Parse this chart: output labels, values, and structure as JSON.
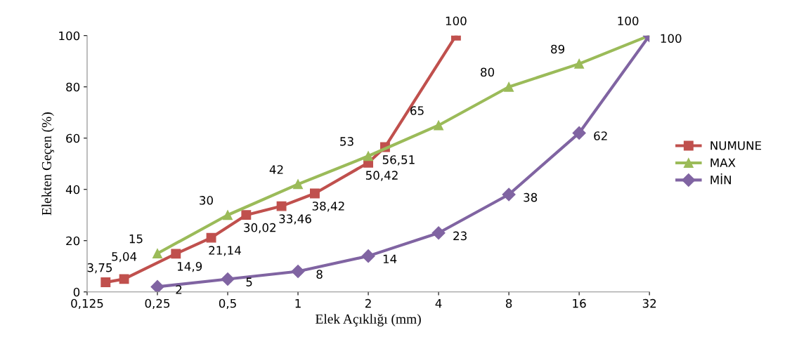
{
  "chart_data": {
    "type": "line",
    "xlabel": "Elek Açıklığı (mm)",
    "ylabel": "Elekten Geçen (%)",
    "log": "x",
    "xlim": [
      0.125,
      32
    ],
    "xticks": [
      {
        "value": 0.125,
        "label": "0,125"
      },
      {
        "value": 0.25,
        "label": "0,25"
      },
      {
        "value": 0.5,
        "label": "0,5"
      },
      1,
      2,
      4,
      8,
      16,
      32
    ],
    "ylim": [
      0,
      100
    ],
    "yticks": [
      0,
      20,
      40,
      60,
      80,
      100
    ],
    "grid": false,
    "legend": "right",
    "series": [
      {
        "name": "NUMUNE",
        "color": "#c0504d",
        "marker": "square",
        "x": [
          0.15,
          0.18,
          0.3,
          0.425,
          0.6,
          0.85,
          1.18,
          2,
          2.36,
          4.75
        ],
        "values": [
          3.75,
          5.04,
          14.9,
          21.14,
          30.02,
          33.46,
          38.42,
          50.42,
          56.51,
          100
        ],
        "value_labels": [
          "3,75",
          "5,04",
          "14,9",
          "21,14",
          "30,02",
          "33,46",
          "38,42",
          "50,42",
          "56,51",
          "100"
        ]
      },
      {
        "name": "MAX",
        "color": "#9bbb59",
        "marker": "triangle",
        "x": [
          0.25,
          0.5,
          1,
          2,
          4,
          8,
          16,
          32
        ],
        "values": [
          15,
          30,
          42,
          53,
          65,
          80,
          89,
          100
        ],
        "value_labels": [
          "15",
          "30",
          "42",
          "53",
          "65",
          "80",
          "89",
          "100"
        ]
      },
      {
        "name": "MİN",
        "color": "#8064a2",
        "marker": "diamond",
        "x": [
          0.25,
          0.5,
          1,
          2,
          4,
          8,
          16,
          32
        ],
        "values": [
          2,
          5,
          8,
          14,
          23,
          38,
          62,
          100
        ],
        "value_labels": [
          "2",
          "5",
          "8",
          "14",
          "23",
          "38",
          "62",
          "100"
        ]
      }
    ]
  }
}
